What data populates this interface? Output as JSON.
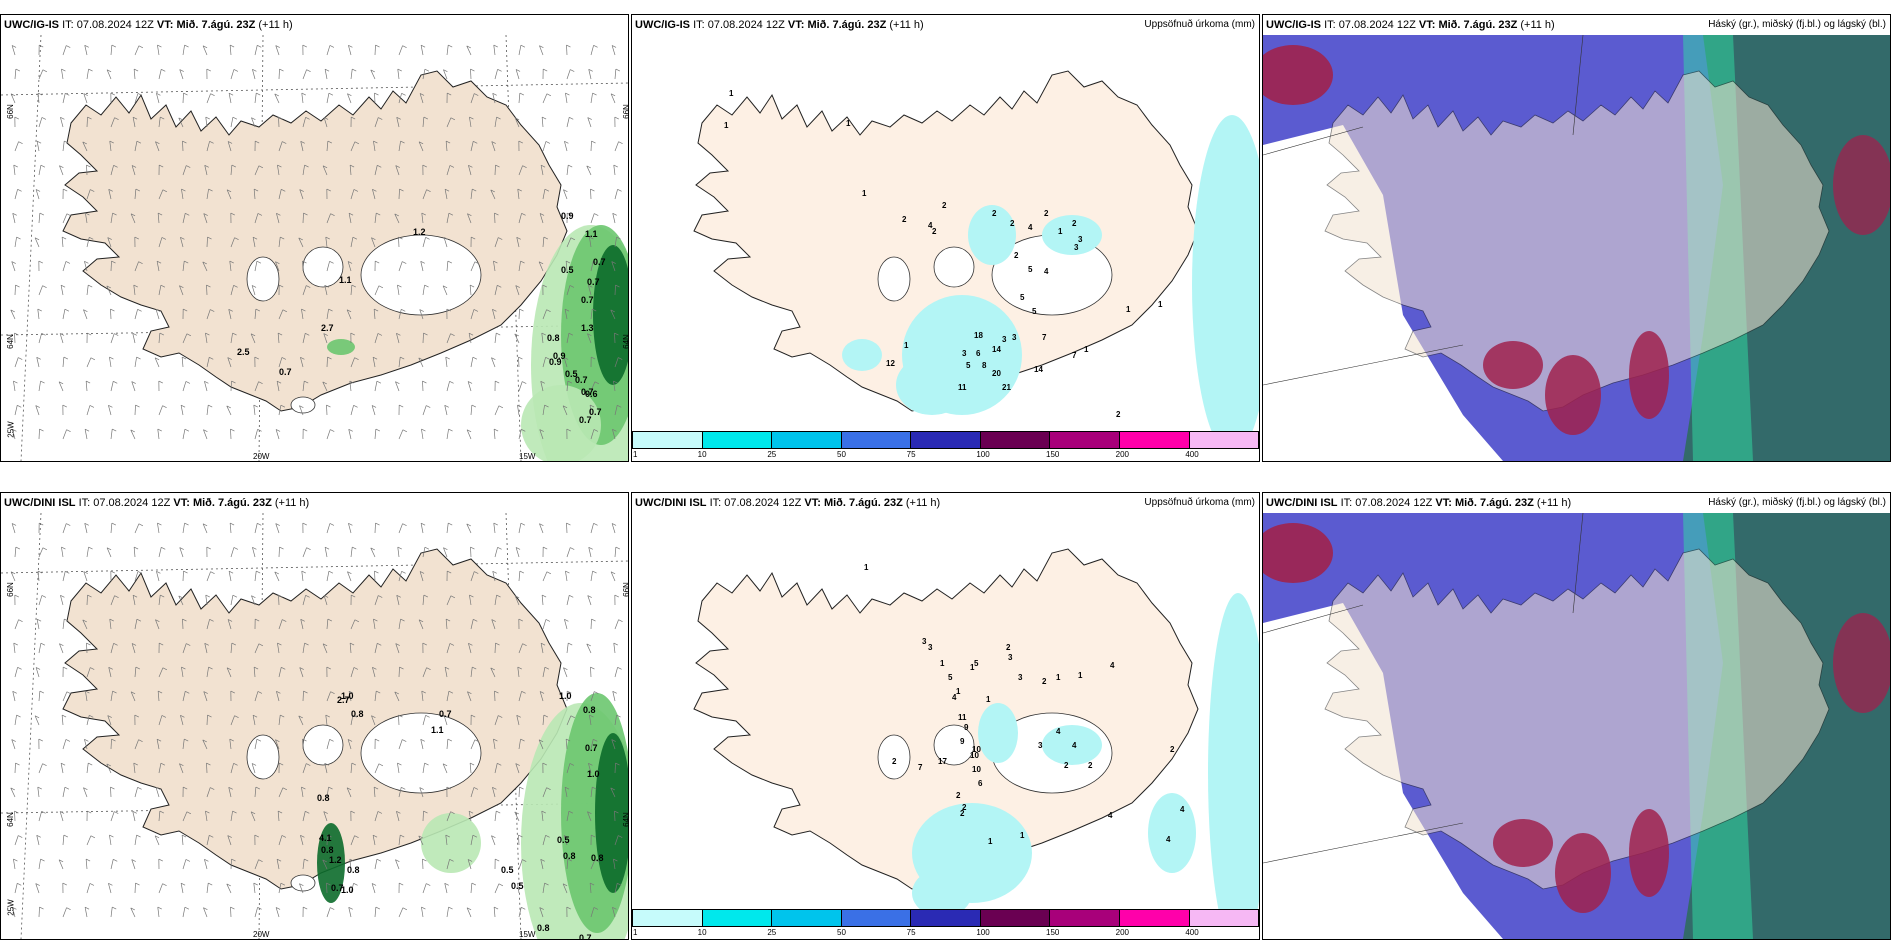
{
  "panels": [
    {
      "id": "top-left",
      "model": "UWC/IG-IS",
      "it_prefix": "IT:",
      "it_value": "07.08.2024 12Z",
      "vt_label": "VT: Mið. 7.ágú. 23Z",
      "lead": "(+11 h)",
      "right_title": "",
      "type": "wind",
      "colors": {
        "land": "#f2e2d1",
        "green_light": "#b9e8b4",
        "green_mid": "#6cc66f",
        "green_dark": "#0c6b2b"
      }
    },
    {
      "id": "top-mid",
      "model": "UWC/IG-IS",
      "it_prefix": "IT:",
      "it_value": "07.08.2024 12Z",
      "vt_label": "VT: Mið. 7.ágú. 23Z",
      "lead": "(+11 h)",
      "right_title": "Uppsöfnuð úrkoma (mm)",
      "type": "precip",
      "colors": {
        "land": "#fdf0e4",
        "precip": "#b3f5f5"
      }
    },
    {
      "id": "top-right",
      "model": "UWC/IG-IS",
      "it_prefix": "IT:",
      "it_value": "07.08.2024 12Z",
      "vt_label": "VT: Mið. 7.ágú. 23Z",
      "lead": "(+11 h)",
      "right_title": "Háský (gr.), miðský (fj.bl.) og lágský (bl.)",
      "type": "clouds",
      "colors": {
        "low": "#5b5bd0",
        "mid": "#a0224d",
        "high": "#2f6b5e"
      }
    },
    {
      "id": "bottom-left",
      "model": "UWC/DINI ISL",
      "it_prefix": "IT:",
      "it_value": "07.08.2024 12Z",
      "vt_label": "VT: Mið. 7.ágú. 23Z",
      "lead": "(+11 h)",
      "right_title": "",
      "type": "wind",
      "colors": {
        "land": "#f2e2d1",
        "green_light": "#b9e8b4",
        "green_mid": "#6cc66f",
        "green_dark": "#0c6b2b"
      }
    },
    {
      "id": "bottom-mid",
      "model": "UWC/DINI ISL",
      "it_prefix": "IT:",
      "it_value": "07.08.2024 12Z",
      "vt_label": "VT: Mið. 7.ágú. 23Z",
      "lead": "(+11 h)",
      "right_title": "Uppsöfnuð úrkoma (mm)",
      "type": "precip",
      "colors": {
        "land": "#fdf0e4",
        "precip": "#b3f5f5"
      }
    },
    {
      "id": "bottom-right",
      "model": "UWC/DINI ISL",
      "it_prefix": "IT:",
      "it_value": "07.08.2024 12Z",
      "vt_label": "VT: Mið. 7.ágú. 23Z",
      "lead": "(+11 h)",
      "right_title": "Háský (gr.), miðský (fj.bl.) og lágský (bl.)",
      "type": "clouds",
      "colors": {
        "low": "#5b5bd0",
        "mid": "#a0224d",
        "high": "#2f6b5e"
      }
    }
  ],
  "axis_labels": {
    "lat_66": "66N",
    "lat_64": "64N",
    "lon_20": "20W",
    "lon_15": "15W",
    "lon_25": "25W"
  },
  "colorbar": {
    "colors": [
      "#c6fbfb",
      "#00e8ec",
      "#00c4ec",
      "#3a70e6",
      "#2a2ab4",
      "#6a0052",
      "#a8007a",
      "#ff00aa",
      "#f6b8f4"
    ],
    "ticks": [
      "1",
      "10",
      "25",
      "50",
      "75",
      "100",
      "150",
      "200",
      "400"
    ]
  },
  "top_wind_labels": [
    "1.2",
    "1.1",
    "2.7",
    "2.5",
    "0.7",
    "0.9",
    "1.1",
    "0.7",
    "0.5",
    "0.7",
    "0.7",
    "0.8",
    "1.3",
    "0.9",
    "0.9",
    "0.5",
    "0.7",
    "0.7",
    "0.6",
    "0.7",
    "0.7"
  ],
  "bottom_wind_labels": [
    "1.0",
    "2.7",
    "0.8",
    "0.7",
    "1.1",
    "1.0",
    "0.8",
    "0.7",
    "1.0",
    "0.8",
    "4.1",
    "0.8",
    "1.2",
    "0.8",
    "0.7",
    "1.0",
    "0.5",
    "0.5",
    "0.5",
    "0.8",
    "0.8",
    "0.6",
    "0.8",
    "0.7"
  ],
  "top_precip_labels": [
    "1",
    "1",
    "1",
    "1",
    "2",
    "4",
    "2",
    "2",
    "2",
    "2",
    "4",
    "2",
    "1",
    "2",
    "3",
    "2",
    "5",
    "4",
    "3",
    "5",
    "5",
    "3",
    "3",
    "6",
    "14",
    "3",
    "7",
    "7",
    "5",
    "8",
    "14",
    "12",
    "1",
    "18",
    "20",
    "11",
    "21",
    "2",
    "1",
    "1",
    "1"
  ],
  "bottom_precip_labels": [
    "1",
    "3",
    "1",
    "3",
    "5",
    "5",
    "1",
    "2",
    "3",
    "1",
    "1",
    "4",
    "3",
    "2",
    "1",
    "1",
    "4",
    "4",
    "3",
    "4",
    "2",
    "2",
    "11",
    "9",
    "9",
    "10",
    "10",
    "17",
    "10",
    "7",
    "2",
    "6",
    "2",
    "2",
    "2",
    "1",
    "1",
    "4",
    "2",
    "4",
    "4"
  ]
}
